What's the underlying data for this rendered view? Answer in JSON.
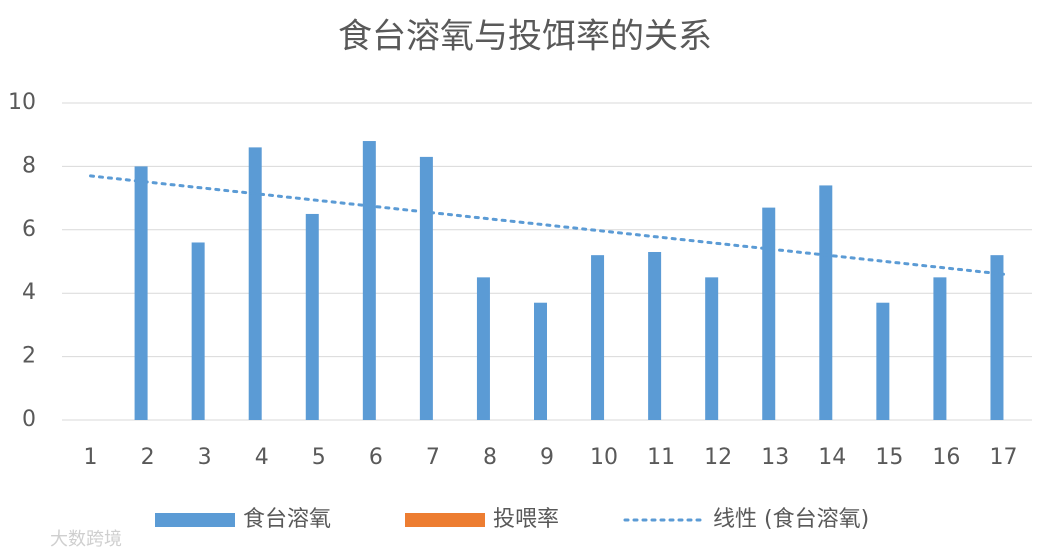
{
  "chart_data": {
    "type": "bar",
    "title": "食台溶氧与投饵率的关系",
    "categories": [
      "1",
      "2",
      "3",
      "4",
      "5",
      "6",
      "7",
      "8",
      "9",
      "10",
      "11",
      "12",
      "13",
      "14",
      "15",
      "16",
      "17"
    ],
    "series": [
      {
        "name": "食台溶氧",
        "color": "#5b9bd5",
        "values": [
          null,
          8.0,
          5.6,
          8.6,
          6.5,
          8.8,
          8.3,
          4.5,
          3.7,
          5.2,
          5.3,
          4.5,
          6.7,
          7.4,
          3.7,
          4.5,
          5.2
        ]
      },
      {
        "name": "投喂率",
        "color": "#ed7d31",
        "values": [
          null,
          null,
          null,
          null,
          null,
          null,
          null,
          null,
          null,
          null,
          null,
          null,
          null,
          null,
          null,
          null,
          null
        ]
      }
    ],
    "trendline": {
      "name": "线性 (食台溶氧)",
      "color": "#5b9bd5",
      "values": [
        7.7,
        4.6
      ]
    },
    "ylim": [
      0,
      10
    ],
    "yticks": [
      0,
      2,
      4,
      6,
      8,
      10
    ],
    "grid": true,
    "watermark": "大数跨境"
  }
}
